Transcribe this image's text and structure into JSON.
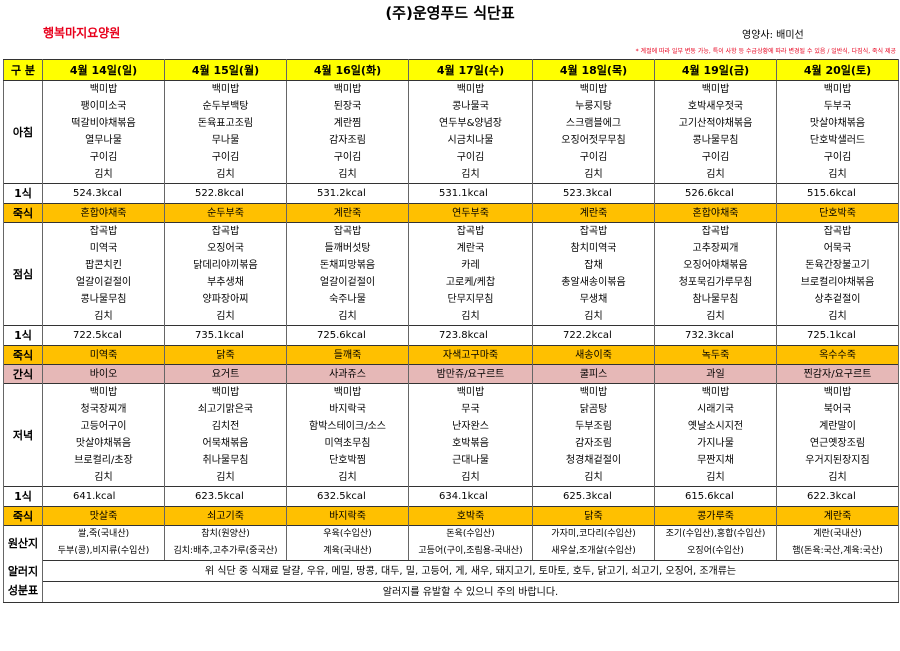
{
  "header": {
    "title": "(주)운영푸드 식단표",
    "facility": "행복마지요양원",
    "nutritionist": "영양사: 배미선",
    "notice": "* 계절에 따라 일부 변동 가능, 특이 사항 등 수급상황에 따라 변경될 수 있음 / 일반식, 다짐식, 죽식 제공"
  },
  "corner": "구 분",
  "days": [
    "4월 14일(일)",
    "4월 15일(월)",
    "4월 16일(화)",
    "4월 17일(수)",
    "4월 18일(목)",
    "4월 19일(금)",
    "4월 20일(토)"
  ],
  "labels": {
    "breakfast": "아침",
    "lunch": "점심",
    "snack": "간식",
    "dinner": "저녁",
    "kcal": "1식",
    "juk": "죽식",
    "origin": "원산지",
    "allergy": "알러지 성분표"
  },
  "breakfast": [
    [
      "백미밥",
      "백미밥",
      "백미밥",
      "백미밥",
      "백미밥",
      "백미밥",
      "백미밥"
    ],
    [
      "팽이미소국",
      "순두부백탕",
      "된장국",
      "콩나물국",
      "누룽지탕",
      "호박새우젓국",
      "두부국"
    ],
    [
      "떡갈비야채볶음",
      "돈육표고조림",
      "계란찜",
      "연두부&양념장",
      "스크램블에그",
      "고기산적야채볶음",
      "맛살야채볶음"
    ],
    [
      "열무나물",
      "무나물",
      "감자조림",
      "시금치나물",
      "오징어젓무무침",
      "콩나물무침",
      "단호박샐러드"
    ],
    [
      "구이김",
      "구이김",
      "구이김",
      "구이김",
      "구이김",
      "구이김",
      "구이김"
    ],
    [
      "김치",
      "김치",
      "김치",
      "김치",
      "김치",
      "김치",
      "김치"
    ]
  ],
  "breakfast_kcal": [
    "524.3kcal",
    "522.8kcal",
    "531.2kcal",
    "531.1kcal",
    "523.3kcal",
    "526.6kcal",
    "515.6kcal"
  ],
  "breakfast_juk": [
    "혼합야채죽",
    "순두부죽",
    "계란죽",
    "연두부죽",
    "계란죽",
    "혼합야채죽",
    "단호박죽"
  ],
  "lunch": [
    [
      "잡곡밥",
      "잡곡밥",
      "잡곡밥",
      "잡곡밥",
      "잡곡밥",
      "잡곡밥",
      "잡곡밥"
    ],
    [
      "미역국",
      "오징어국",
      "들깨버섯탕",
      "계란국",
      "참치미역국",
      "고추장찌개",
      "어묵국"
    ],
    [
      "팝콘치킨",
      "닭데리야끼볶음",
      "돈채피망볶음",
      "카레",
      "잡채",
      "오징어야채볶음",
      "돈육간장불고기"
    ],
    [
      "얼갈이겉절이",
      "부추생채",
      "얼갈이겉절이",
      "고로케/케찹",
      "총알새송이볶음",
      "청포묵김가루무침",
      "브로컬리야채볶음"
    ],
    [
      "콩나물무침",
      "양파장아찌",
      "숙주나물",
      "단무지무침",
      "무생채",
      "참나물무침",
      "상추겉절이"
    ],
    [
      "김치",
      "김치",
      "김치",
      "김치",
      "김치",
      "김치",
      "김치"
    ]
  ],
  "lunch_kcal": [
    "722.5kcal",
    "735.1kcal",
    "725.6kcal",
    "723.8kcal",
    "722.2kcal",
    "732.3kcal",
    "725.1kcal"
  ],
  "lunch_juk": [
    "미역죽",
    "닭죽",
    "들깨죽",
    "자색고구마죽",
    "새송이죽",
    "녹두죽",
    "옥수수죽"
  ],
  "snack": [
    "바이오",
    "요거트",
    "사과쥬스",
    "밤만쥬/요구르트",
    "쿨피스",
    "과일",
    "찐감자/요구르트"
  ],
  "dinner": [
    [
      "백미밥",
      "백미밥",
      "백미밥",
      "백미밥",
      "백미밥",
      "백미밥",
      "백미밥"
    ],
    [
      "청국장찌개",
      "쇠고기맑은국",
      "바지락국",
      "무국",
      "닭곰탕",
      "시래기국",
      "북어국"
    ],
    [
      "고등어구이",
      "김치전",
      "함박스테이크/소스",
      "난자완스",
      "두부조림",
      "옛날소시지전",
      "계란말이"
    ],
    [
      "맛살야채볶음",
      "어묵채볶음",
      "미역초무침",
      "호박볶음",
      "감자조림",
      "가지나물",
      "연근옛장조림"
    ],
    [
      "브로컬리/초장",
      "취나물무침",
      "단호박찜",
      "근대나물",
      "청경채겉절이",
      "무짠지채",
      "우거지된장지짐"
    ],
    [
      "김치",
      "김치",
      "김치",
      "김치",
      "김치",
      "김치",
      "김치"
    ]
  ],
  "dinner_kcal": [
    "641.kcal",
    "623.5kcal",
    "632.5kcal",
    "634.1kcal",
    "625.3kcal",
    "615.6kcal",
    "622.3kcal"
  ],
  "dinner_juk": [
    "맛살죽",
    "쇠고기죽",
    "바지락죽",
    "호박죽",
    "닭죽",
    "콩가루죽",
    "계란죽"
  ],
  "origin": [
    [
      "쌀,죽(국내산)",
      "참치(원양산)",
      "우육(수입산)",
      "돈육(수입산)",
      "가자미,코다리(수입산)",
      "조기(수입산),홍합(수입산)",
      "계란(국내산)"
    ],
    [
      "두부(콩),비지류(수입산)",
      "김치:배추,고추가루(중국산)",
      "계육(국내산)",
      "고등어(구이,조림용-국내산)",
      "새우살,조개살(수입산)",
      "오징어(수입산)",
      "햄(돈육:국산,계육:국산)"
    ]
  ],
  "allergy_text": [
    "위 식단 중 식재료 달걀, 우유, 메밀, 땅콩, 대두, 밀, 고등어, 게, 새우, 돼지고기, 토마토, 호두, 닭고기, 쇠고기, 오징어, 조개류는",
    "알러지를 유발할 수 있으니 주의 바랍니다."
  ]
}
